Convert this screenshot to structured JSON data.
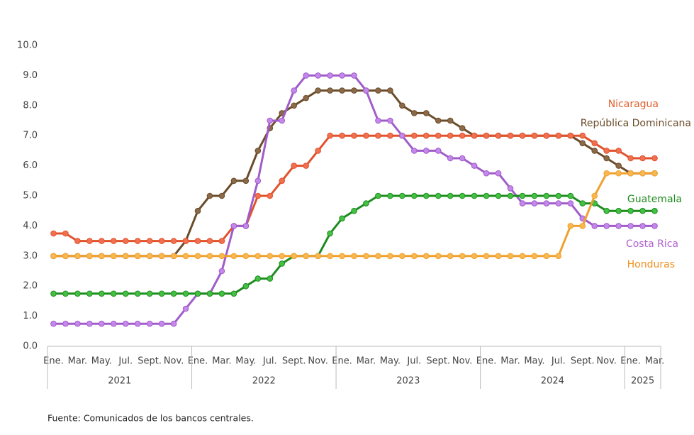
{
  "chart_data": {
    "type": "line",
    "categories": [
      "Ene.",
      null,
      "Mar.",
      null,
      "May.",
      null,
      "Jul.",
      null,
      "Sept.",
      null,
      "Nov.",
      null,
      "Ene.",
      null,
      "Mar.",
      null,
      "May.",
      null,
      "Jul.",
      null,
      "Sept.",
      null,
      "Nov.",
      null,
      "Ene.",
      null,
      "Mar.",
      null,
      "May.",
      null,
      "Jul.",
      null,
      "Sept.",
      null,
      "Nov.",
      null,
      "Ene.",
      null,
      "Mar.",
      null,
      "May.",
      null,
      "Jul.",
      null,
      "Sept.",
      null,
      "Nov.",
      null,
      "Ene.",
      null,
      "Mar."
    ],
    "years": [
      "2021",
      "2022",
      "2023",
      "2024",
      "2025"
    ],
    "ylim": [
      0,
      10
    ],
    "yticks": [
      {
        "value": 0,
        "label": "0.0"
      },
      {
        "value": 1,
        "label": "1.0"
      },
      {
        "value": 2,
        "label": "2.0"
      },
      {
        "value": 3,
        "label": "3.0"
      },
      {
        "value": 4,
        "label": "4.0"
      },
      {
        "value": 5,
        "label": "5.0"
      },
      {
        "value": 6,
        "label": "6.0"
      },
      {
        "value": 7,
        "label": "7.0"
      },
      {
        "value": 8,
        "label": "8.0"
      },
      {
        "value": 9,
        "label": "9.0"
      },
      {
        "value": 10,
        "label": "10.0"
      }
    ],
    "grid": false,
    "series": [
      {
        "name": "Nicaragua",
        "color": "#e0522c",
        "values": [
          3.75,
          3.75,
          3.5,
          3.5,
          3.5,
          3.5,
          3.5,
          3.5,
          3.5,
          3.5,
          3.5,
          3.5,
          3.5,
          3.5,
          3.5,
          4.0,
          4.0,
          5.0,
          5.0,
          5.5,
          6.0,
          6.0,
          6.5,
          7.0,
          7,
          7,
          7,
          7,
          7,
          7,
          7,
          7,
          7,
          7,
          7,
          7,
          7,
          7,
          7,
          7,
          7,
          7,
          7,
          7,
          7,
          6.75,
          6.5,
          6.5,
          6.25,
          6.25,
          6.25
        ]
      },
      {
        "name": "República Dominicana",
        "color": "#6b4c2a",
        "values": [
          3,
          3,
          3,
          3,
          3,
          3,
          3,
          3,
          3,
          3,
          3,
          3.5,
          4.5,
          5.0,
          5.0,
          5.5,
          5.5,
          6.5,
          7.25,
          7.75,
          8.0,
          8.25,
          8.5,
          8.5,
          8.5,
          8.5,
          8.5,
          8.5,
          8.5,
          8.0,
          7.75,
          7.75,
          7.5,
          7.5,
          7.25,
          7.0,
          7,
          7,
          7,
          7,
          7,
          7,
          7,
          7,
          6.75,
          6.5,
          6.25,
          6.0,
          5.75,
          5.75,
          5.75
        ]
      },
      {
        "name": "Guatemala",
        "color": "#1e8c1e",
        "values": [
          1.75,
          1.75,
          1.75,
          1.75,
          1.75,
          1.75,
          1.75,
          1.75,
          1.75,
          1.75,
          1.75,
          1.75,
          1.75,
          1.75,
          1.75,
          1.75,
          2.0,
          2.25,
          2.25,
          2.75,
          3.0,
          3.0,
          3.0,
          3.75,
          4.25,
          4.5,
          4.75,
          5,
          5,
          5,
          5,
          5,
          5,
          5,
          5,
          5,
          5,
          5,
          5,
          5,
          5,
          5,
          5,
          5,
          4.75,
          4.75,
          4.5,
          4.5,
          4.5,
          4.5,
          4.5
        ]
      },
      {
        "name": "Costa Rica",
        "color": "#a05cc8",
        "values": [
          0.75,
          0.75,
          0.75,
          0.75,
          0.75,
          0.75,
          0.75,
          0.75,
          0.75,
          0.75,
          0.75,
          1.25,
          1.75,
          1.75,
          2.5,
          4.0,
          4.0,
          5.5,
          7.5,
          7.5,
          8.5,
          9.0,
          9.0,
          9.0,
          9.0,
          9.0,
          8.5,
          7.5,
          7.5,
          7.0,
          6.5,
          6.5,
          6.5,
          6.25,
          6.25,
          6.0,
          5.75,
          5.75,
          5.25,
          4.75,
          4.75,
          4.75,
          4.75,
          4.75,
          4.25,
          4.0,
          4.0,
          4.0,
          4.0,
          4.0,
          4.0
        ]
      },
      {
        "name": "Honduras",
        "color": "#f0a030",
        "values": [
          3,
          3,
          3,
          3,
          3,
          3,
          3,
          3,
          3,
          3,
          3,
          3,
          3,
          3,
          3,
          3,
          3,
          3,
          3,
          3,
          3,
          3,
          3,
          3,
          3,
          3,
          3,
          3,
          3,
          3,
          3,
          3,
          3,
          3,
          3,
          3,
          3,
          3,
          3,
          3,
          3,
          3,
          3,
          4.0,
          4.0,
          5.0,
          5.75,
          5.75,
          5.75,
          5.75,
          5.75
        ]
      }
    ],
    "source": "Fuente: Comunicados de los bancos centrales."
  }
}
